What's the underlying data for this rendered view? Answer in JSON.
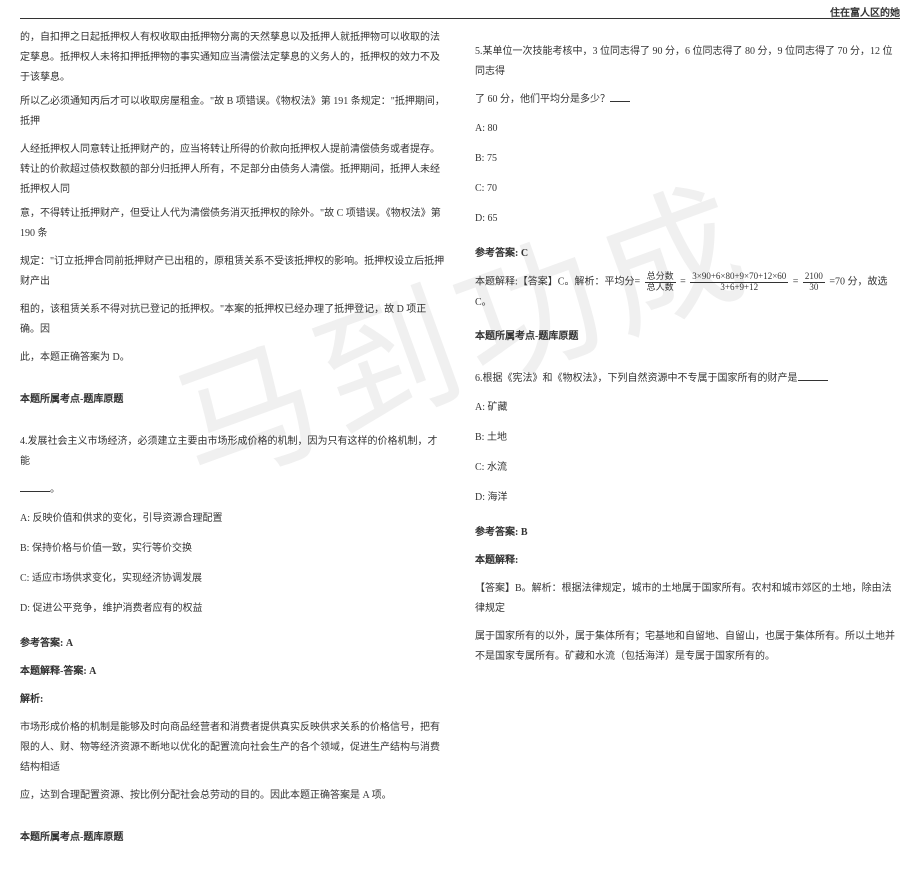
{
  "header": {
    "right": "住在富人区的她"
  },
  "watermark": "马到功成",
  "left": {
    "p1": "的，自扣押之日起抵押权人有权收取由抵押物分离的天然孳息以及抵押人就抵押物可以收取的法定孳息。抵押权人未将扣押抵押物的事实通知应当清偿法定孳息的义务人的，抵押权的效力不及于该孳息。",
    "p2": "所以乙必须通知丙后才可以收取房屋租金。\"故 B 项错误。《物权法》第 191 条规定：\"抵押期间，抵押",
    "p3": "人经抵押权人同意转让抵押财产的，应当将转让所得的价款向抵押权人提前清偿债务或者提存。转让的价款超过债权数额的部分归抵押人所有，不足部分由债务人清偿。抵押期间，抵押人未经抵押权人同",
    "p4": "意，不得转让抵押财产，但受让人代为清偿债务消灭抵押权的除外。\"故 C 项错误。《物权法》第190 条",
    "p5": "规定：\"订立抵押合同前抵押财产已出租的，原租赁关系不受该抵押权的影响。抵押权设立后抵押财产出",
    "p6": "租的，该租赁关系不得对抗已登记的抵押权。\"本案的抵押权已经办理了抵押登记，故 D 项正确。因",
    "p7": "此，本题正确答案为 D。",
    "topic1": "本题所属考点-题库原题",
    "q4": "4.发展社会主义市场经济，必须建立主要由市场形成价格的机制，因为只有这样的价格机制，才能",
    "q4blank": "。",
    "q4a": "A: 反映价值和供求的变化，引导资源合理配置",
    "q4b": "B: 保持价格与价值一致，实行等价交换",
    "q4c": "C: 适应市场供求变化，实现经济协调发展",
    "q4d": "D: 促进公平竞争，维护消费者应有的权益",
    "ans4": "参考答案: A",
    "exp4label": "本题解释-答案: A",
    "exp4h": "解析:",
    "exp4p": "市场形成价格的机制是能够及时向商品经营者和消费者提供真实反映供求关系的价格信号，把有限的人、财、物等经济资源不断地以优化的配置流向社会生产的各个领域，促进生产结构与消费结构相适",
    "exp4p2": "应，达到合理配置资源、按比例分配社会总劳动的目的。因此本题正确答案是 A 项。",
    "topic2": "本题所属考点-题库原题"
  },
  "right": {
    "q5": "5.某单位一次技能考核中，3 位同志得了 90 分，6 位同志得了 80 分，9 位同志得了 70 分，12 位同志得",
    "q5b": "了 60 分，他们平均分是多少？",
    "q5a1": "A: 80",
    "q5a2": "B: 75",
    "q5a3": "C: 70",
    "q5a4": "D: 65",
    "ans5": "参考答案: C",
    "exp5pre": "本题解释:【答案】C。解析：平均分=",
    "frac1num": "总分数",
    "frac1den": "总人数",
    "frac2num": "3×90+6×80+9×70+12×60",
    "frac2den": "3+6+9+12",
    "frac3num": "2100",
    "frac3den": "30",
    "exp5post": "=70 分，故选 C。",
    "topic5": "本题所属考点-题库原题",
    "q6": "6.根据《宪法》和《物权法》，下列自然资源中不专属于国家所有的财产是",
    "q6a": "A: 矿藏",
    "q6b": "B: 土地",
    "q6c": "C: 水流",
    "q6d": "D: 海洋",
    "ans6": "参考答案: B",
    "exp6h": "本题解释:",
    "exp6p1": "【答案】B。解析：根据法律规定，城市的土地属于国家所有。农村和城市郊区的土地，除由法律规定",
    "exp6p2": "属于国家所有的以外，属于集体所有；宅基地和自留地、自留山，也属于集体所有。所以土地并不是国家专属所有。矿藏和水流（包括海洋）是专属于国家所有的。"
  }
}
